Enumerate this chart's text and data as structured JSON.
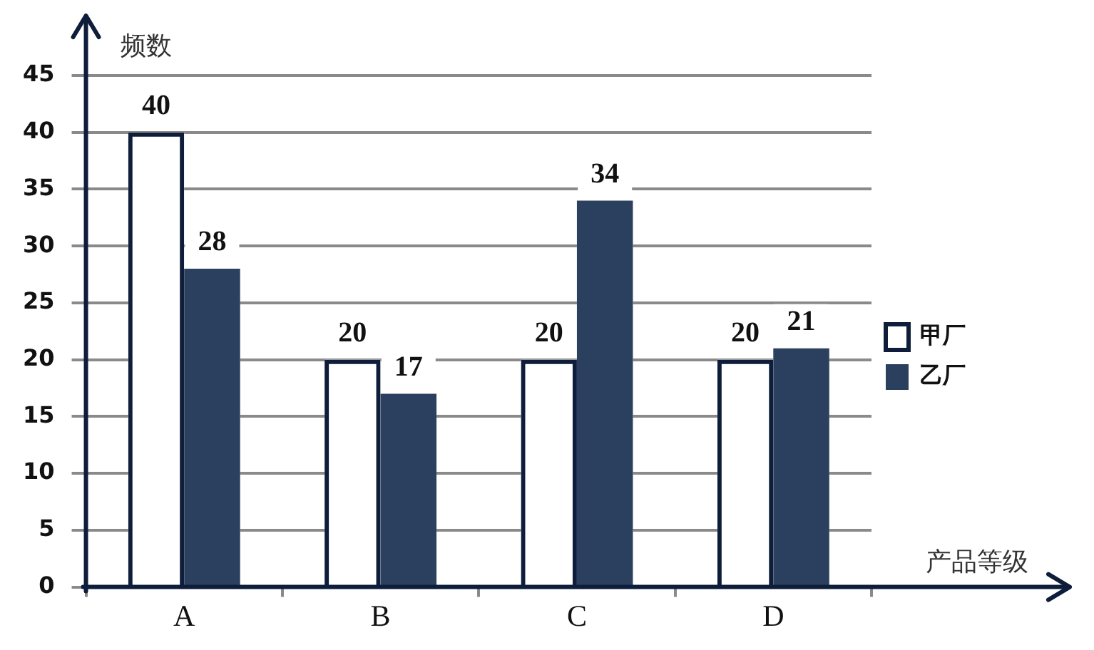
{
  "chart_data": {
    "type": "bar",
    "xlabel": "产品等级",
    "ylabel": "频数",
    "categories": [
      "A",
      "B",
      "C",
      "D"
    ],
    "series": [
      {
        "name": "甲厂",
        "color": "#0d1d3a",
        "values": [
          40,
          20,
          20,
          20
        ]
      },
      {
        "name": "乙厂",
        "color": "#2b405f",
        "values": [
          28,
          17,
          34,
          21
        ]
      }
    ],
    "ylim": [
      0,
      45
    ],
    "yticks": [
      0,
      5,
      10,
      15,
      20,
      25,
      30,
      35,
      40,
      45
    ],
    "grid": "y",
    "legend": "right",
    "data_labels": true
  }
}
